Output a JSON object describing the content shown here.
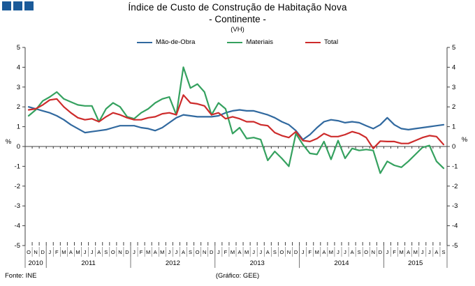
{
  "header": {
    "title": "Índice de Custo de Construção de Habitação Nova",
    "subtitle": "- Continente -",
    "unit_note": "(VH)",
    "logo_color": "#1b5a99",
    "logo_square_count": 3
  },
  "legend": [
    {
      "label": "Mão-de-Obra",
      "color": "#31699f"
    },
    {
      "label": "Materiais",
      "color": "#35a15f"
    },
    {
      "label": "Total",
      "color": "#cd2b2b"
    }
  ],
  "axis": {
    "y_unit_left": "%",
    "y_unit_right": "%",
    "y_ticks": [
      5,
      4,
      3,
      2,
      1,
      0,
      -1,
      -2,
      -3,
      -4,
      -5
    ]
  },
  "footer": {
    "source": "Fonte: INE",
    "credit": "(Gráfico: GEE)"
  },
  "chart_data": {
    "type": "line",
    "title": "Índice de Custo de Construção de Habitação Nova - Continente - (VH)",
    "ylabel": "%",
    "ylim": [
      -5,
      5
    ],
    "grid": false,
    "legend_position": "top-center",
    "x_month_letters": [
      "O",
      "N",
      "D",
      "J",
      "F",
      "M",
      "A",
      "M",
      "J",
      "J",
      "A",
      "S",
      "O",
      "N",
      "D",
      "J",
      "F",
      "M",
      "A",
      "M",
      "J",
      "J",
      "A",
      "S",
      "O",
      "N",
      "D",
      "J",
      "F",
      "M",
      "A",
      "M",
      "J",
      "J",
      "A",
      "S",
      "O",
      "N",
      "D",
      "J",
      "F",
      "M",
      "A",
      "M",
      "J",
      "J",
      "A",
      "S",
      "O",
      "N",
      "D",
      "J",
      "F",
      "M",
      "A",
      "M",
      "J",
      "J",
      "A",
      "S"
    ],
    "x_years": [
      {
        "label": "2010",
        "from": 0,
        "to": 2
      },
      {
        "label": "2011",
        "from": 3,
        "to": 14
      },
      {
        "label": "2012",
        "from": 15,
        "to": 26
      },
      {
        "label": "2013",
        "from": 27,
        "to": 38
      },
      {
        "label": "2014",
        "from": 39,
        "to": 50
      },
      {
        "label": "2015",
        "from": 51,
        "to": 59
      }
    ],
    "series": [
      {
        "name": "Mão-de-Obra",
        "color": "#31699f",
        "values": [
          2.0,
          1.9,
          1.8,
          1.7,
          1.55,
          1.35,
          1.1,
          0.9,
          0.7,
          0.75,
          0.8,
          0.85,
          0.95,
          1.05,
          1.05,
          1.05,
          0.95,
          0.9,
          0.8,
          0.95,
          1.2,
          1.45,
          1.6,
          1.55,
          1.5,
          1.5,
          1.5,
          1.55,
          1.7,
          1.8,
          1.85,
          1.8,
          1.8,
          1.7,
          1.6,
          1.45,
          1.25,
          1.1,
          0.8,
          0.35,
          0.6,
          0.95,
          1.25,
          1.35,
          1.3,
          1.2,
          1.25,
          1.2,
          1.05,
          0.9,
          1.1,
          1.45,
          1.1,
          0.9,
          0.85,
          0.9,
          0.95,
          1.0,
          1.05,
          1.1
        ]
      },
      {
        "name": "Materiais",
        "color": "#35a15f",
        "values": [
          1.55,
          1.85,
          2.3,
          2.5,
          2.75,
          2.4,
          2.25,
          2.1,
          2.05,
          2.05,
          1.25,
          1.9,
          2.2,
          2.0,
          1.5,
          1.4,
          1.7,
          1.9,
          2.2,
          2.4,
          2.5,
          1.6,
          4.0,
          2.95,
          3.15,
          2.75,
          1.6,
          2.2,
          1.9,
          0.65,
          0.95,
          0.4,
          0.45,
          0.35,
          -0.7,
          -0.25,
          -0.6,
          -1.0,
          0.65,
          0.1,
          -0.35,
          -0.4,
          0.25,
          -0.65,
          0.3,
          -0.6,
          -0.1,
          -0.2,
          -0.15,
          -0.2,
          -1.35,
          -0.75,
          -0.95,
          -1.05,
          -0.75,
          -0.4,
          -0.05,
          0.05,
          -0.75,
          -1.1
        ]
      },
      {
        "name": "Total",
        "color": "#cd2b2b",
        "values": [
          1.85,
          1.9,
          2.1,
          2.35,
          2.4,
          2.0,
          1.7,
          1.45,
          1.35,
          1.4,
          1.25,
          1.5,
          1.7,
          1.6,
          1.45,
          1.35,
          1.35,
          1.45,
          1.5,
          1.65,
          1.7,
          1.6,
          2.6,
          2.2,
          2.15,
          2.05,
          1.6,
          1.7,
          1.4,
          1.5,
          1.4,
          1.25,
          1.25,
          1.1,
          1.05,
          0.7,
          0.55,
          0.45,
          0.75,
          0.3,
          0.25,
          0.4,
          0.65,
          0.5,
          0.5,
          0.6,
          0.75,
          0.65,
          0.45,
          -0.1,
          0.27,
          0.25,
          0.25,
          0.15,
          0.15,
          0.3,
          0.45,
          0.55,
          0.5,
          0.1
        ]
      }
    ]
  }
}
